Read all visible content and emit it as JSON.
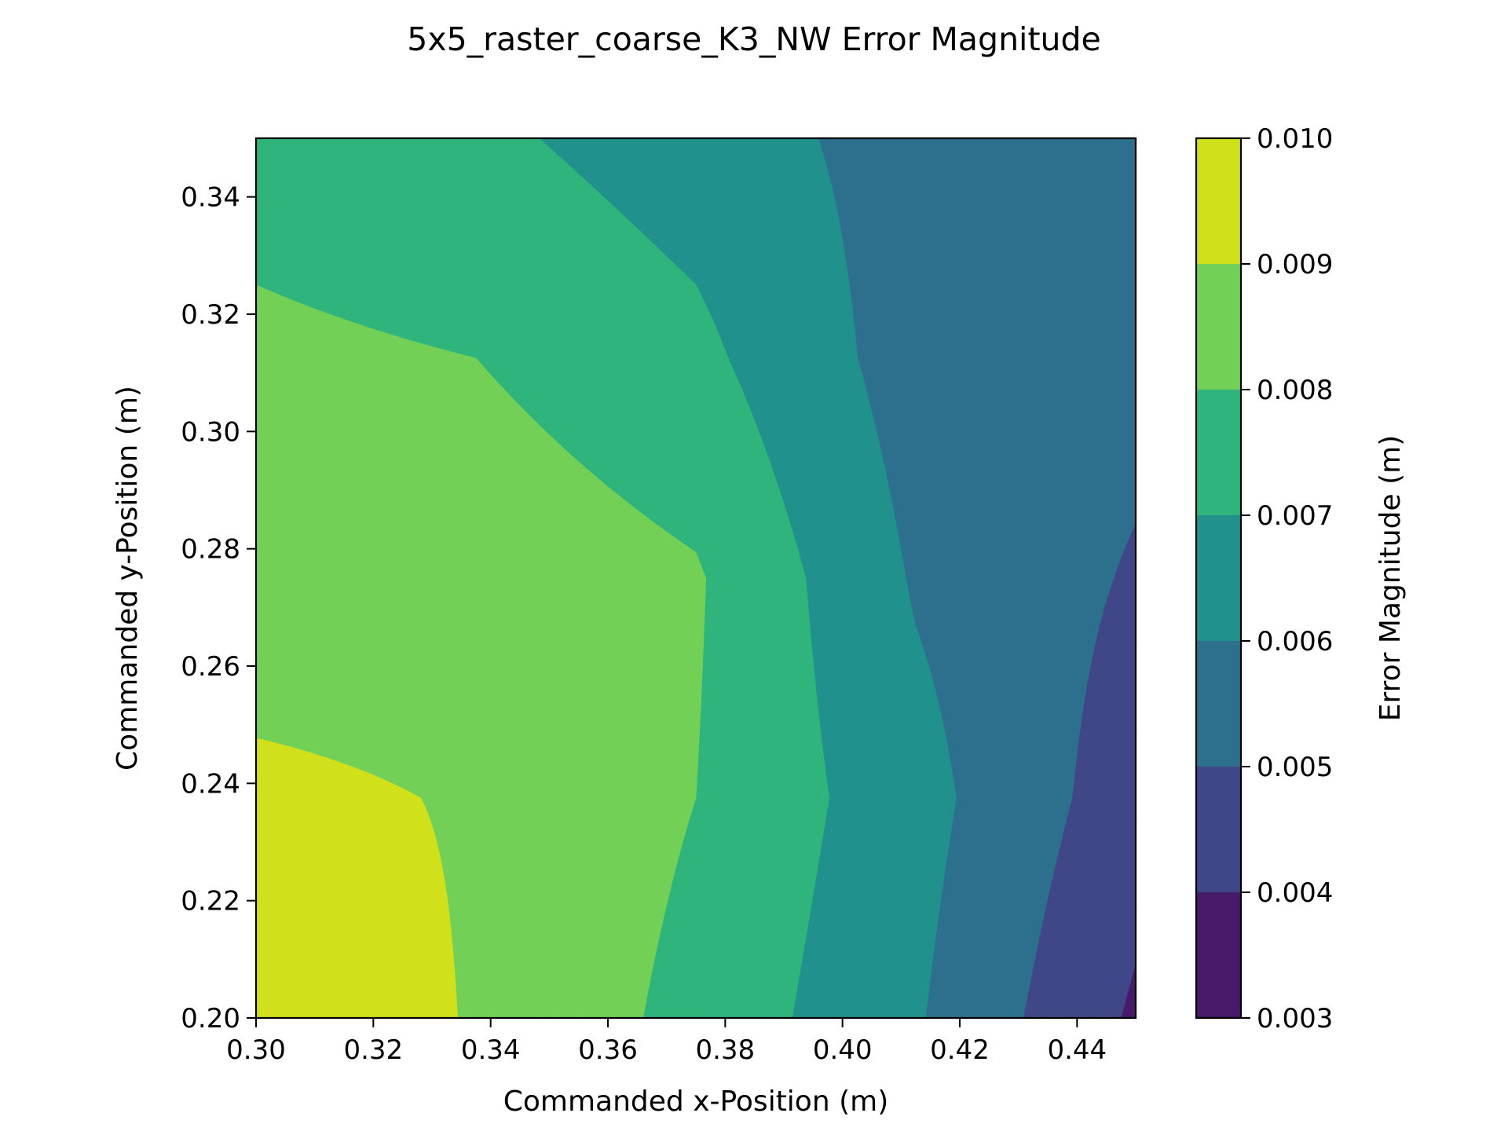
{
  "chart_data": {
    "type": "contourf",
    "title": "5x5_raster_coarse_K3_NW Error Magnitude",
    "xlabel": "Commanded x-Position (m)",
    "ylabel": "Commanded y-Position (m)",
    "xlim": [
      0.3,
      0.45
    ],
    "ylim": [
      0.2,
      0.35
    ],
    "x_ticks": [
      0.3,
      0.32,
      0.34,
      0.36,
      0.38,
      0.4,
      0.42,
      0.44
    ],
    "x_tick_labels": [
      "0.30",
      "0.32",
      "0.34",
      "0.36",
      "0.38",
      "0.40",
      "0.42",
      "0.44"
    ],
    "y_ticks": [
      0.2,
      0.22,
      0.24,
      0.26,
      0.28,
      0.3,
      0.32,
      0.34
    ],
    "y_tick_labels": [
      "0.20",
      "0.22",
      "0.24",
      "0.26",
      "0.28",
      "0.30",
      "0.32",
      "0.34"
    ],
    "grid_x": [
      0.3,
      0.3375,
      0.375,
      0.4125,
      0.45
    ],
    "grid_y": [
      0.2,
      0.2375,
      0.275,
      0.3125,
      0.35
    ],
    "z": [
      [
        0.00955,
        0.00895,
        0.0077,
        0.0061,
        0.00385
      ],
      [
        0.00915,
        0.00895,
        0.008,
        0.00635,
        0.00445
      ],
      [
        0.0086,
        0.00865,
        0.0081,
        0.0059,
        0.0049
      ],
      [
        0.0082,
        0.008,
        0.00725,
        0.00555,
        0.0053
      ],
      [
        0.0076,
        0.0072,
        0.0065,
        0.0056,
        0.00545
      ]
    ],
    "colorbar": {
      "label": "Error Magnitude (m)",
      "levels": [
        0.003,
        0.004,
        0.005,
        0.006,
        0.007,
        0.008,
        0.009,
        0.01
      ],
      "tick_labels": [
        "0.003",
        "0.004",
        "0.005",
        "0.006",
        "0.007",
        "0.008",
        "0.009",
        "0.010"
      ],
      "colors": [
        "#471a6a",
        "#3f4788",
        "#2d708e",
        "#21918c",
        "#2fb47c",
        "#72d056",
        "#d0e11c"
      ]
    }
  }
}
